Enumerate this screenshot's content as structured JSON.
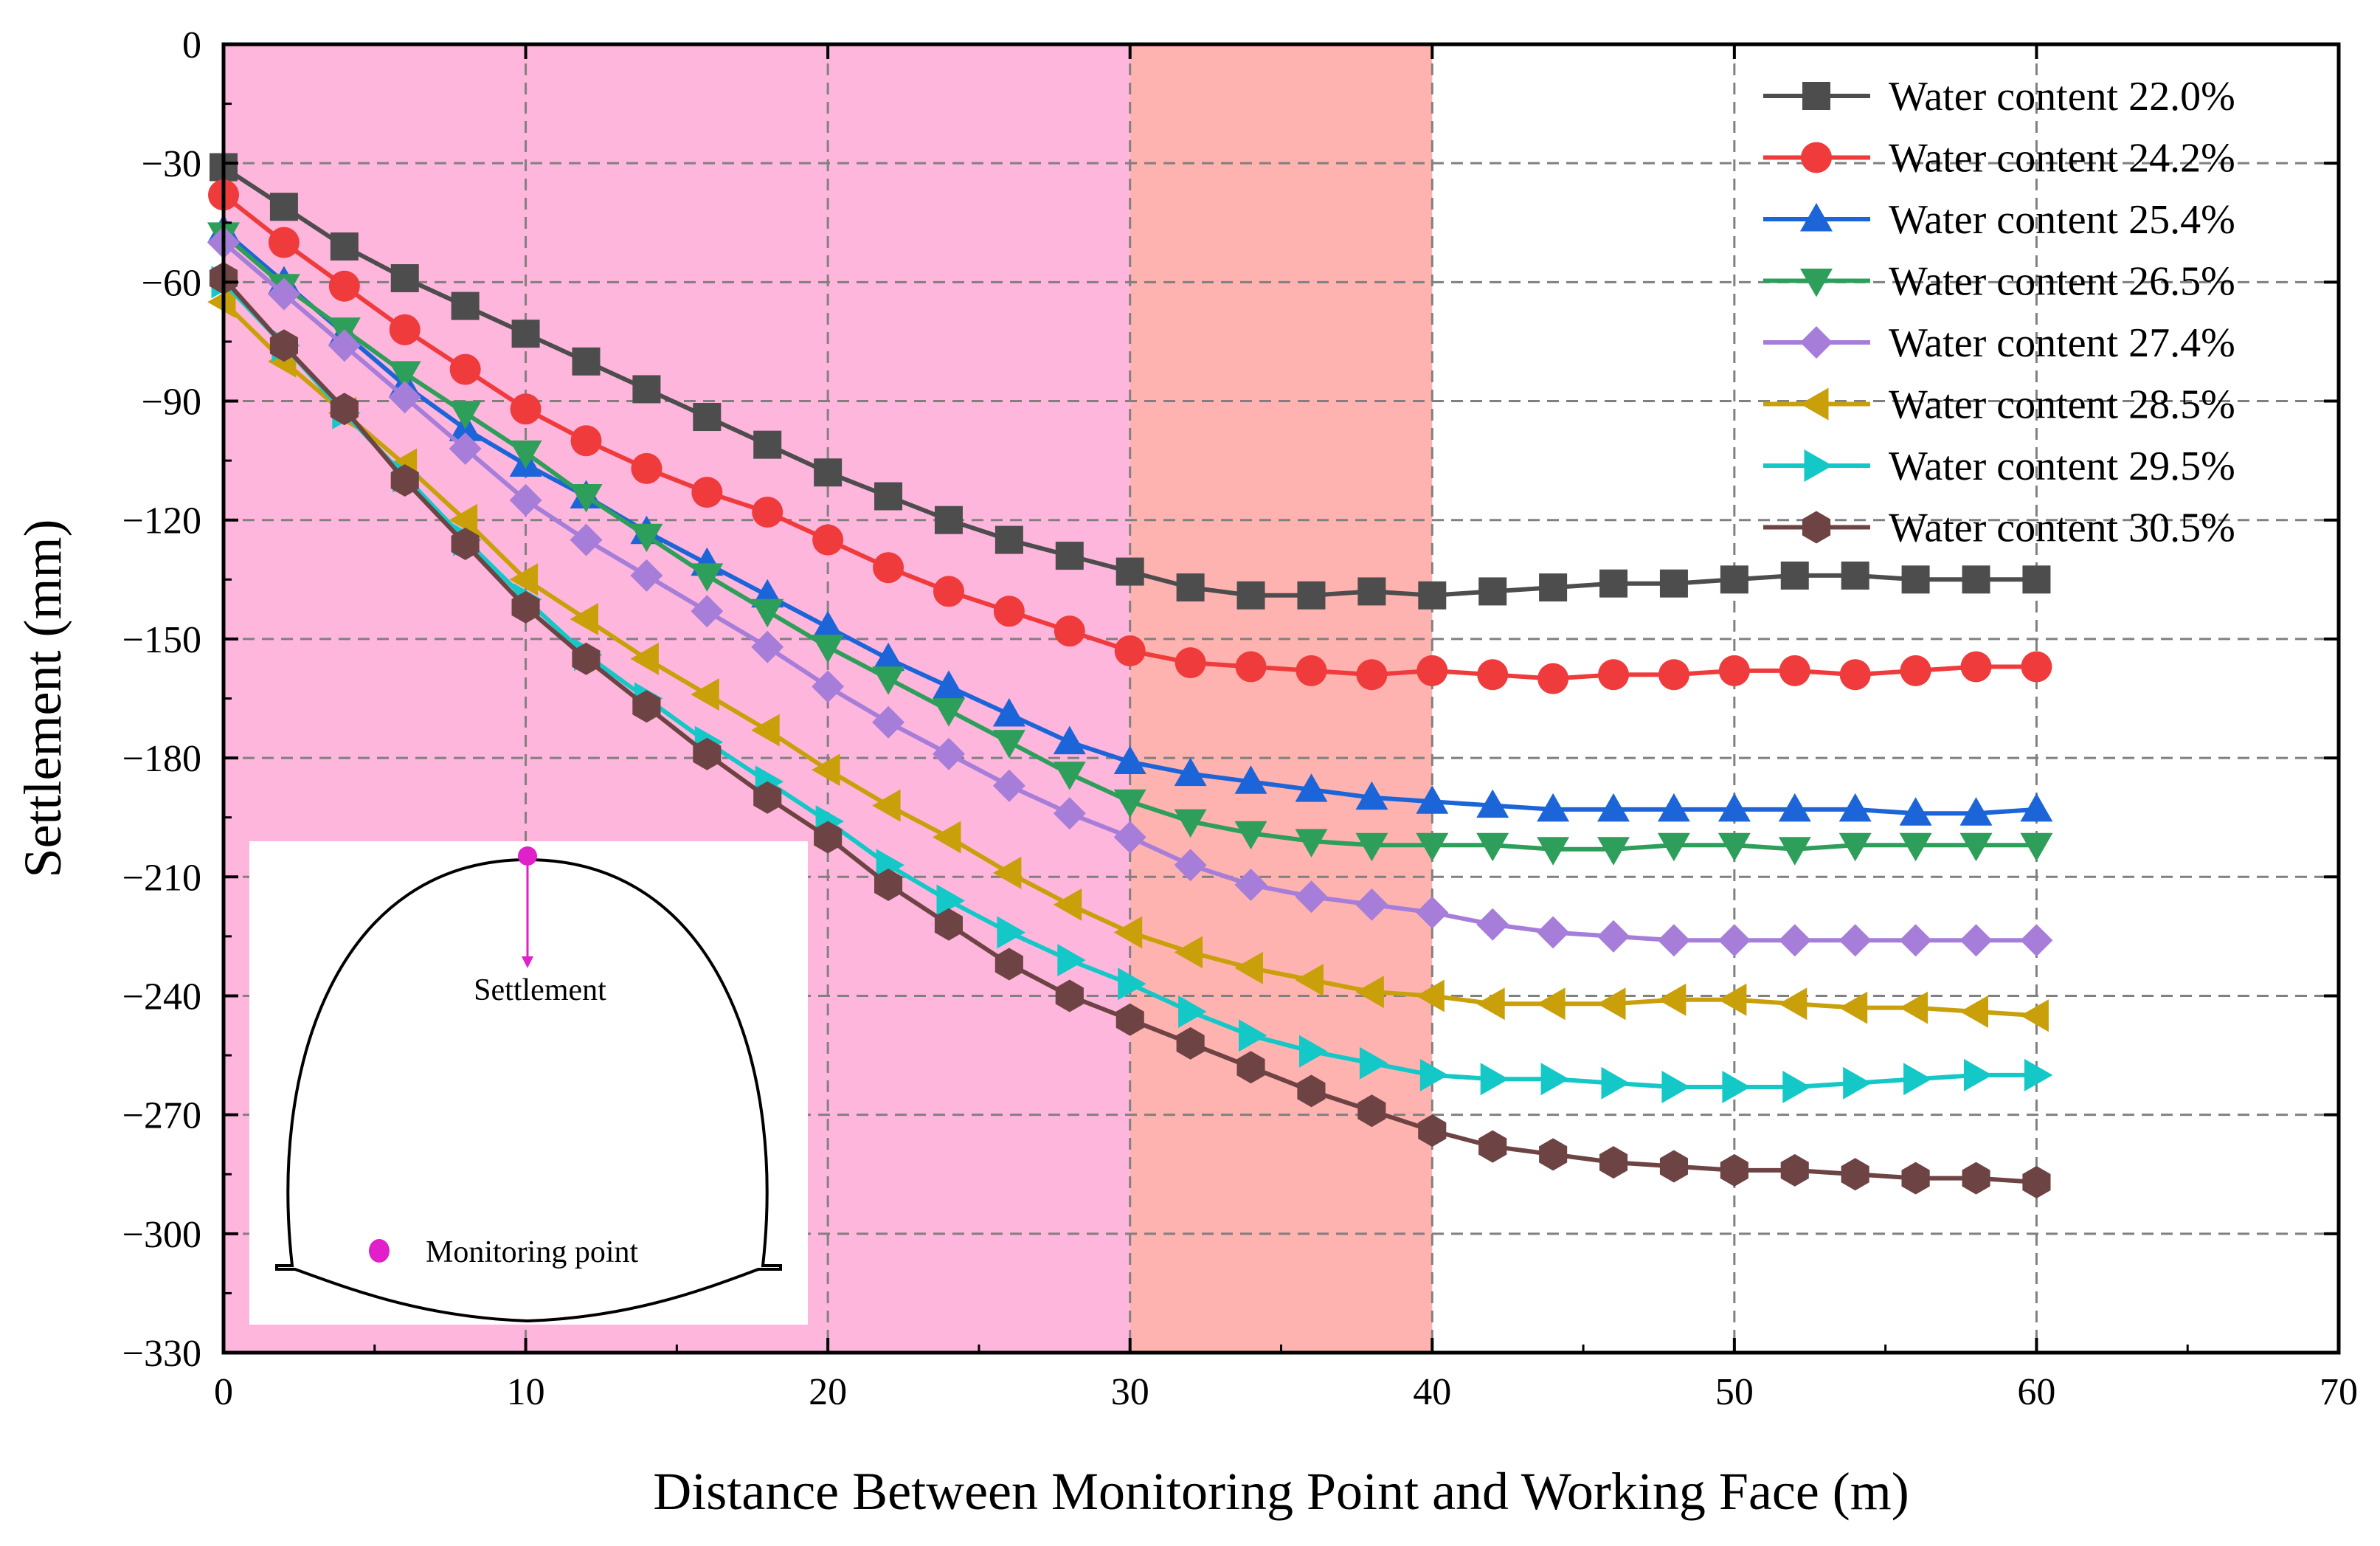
{
  "chart_data": {
    "type": "line",
    "title": "",
    "xlabel": "Distance Between Monitoring Point and Working Face (m)",
    "ylabel": "Settlement (mm)",
    "xlim": [
      0,
      70
    ],
    "ylim": [
      -330,
      0
    ],
    "xticks": [
      0,
      10,
      20,
      30,
      40,
      50,
      60,
      70
    ],
    "yticks": [
      0,
      -30,
      -60,
      -90,
      -120,
      -150,
      -180,
      -210,
      -240,
      -270,
      -300,
      -330
    ],
    "grid": "dashed, both axes",
    "legend_position": "top-right",
    "regions": [
      {
        "from": 0,
        "to": 30,
        "color": "#ffb6dc"
      },
      {
        "from": 30,
        "to": 40,
        "color": "#ffb3b0"
      }
    ],
    "x": [
      0,
      2,
      4,
      6,
      8,
      10,
      12,
      14,
      16,
      18,
      20,
      22,
      24,
      26,
      28,
      30,
      32,
      34,
      36,
      38,
      40,
      42,
      44,
      46,
      48,
      50,
      52,
      54,
      56,
      58,
      60
    ],
    "series": [
      {
        "name": "Water content 22.0%",
        "color": "#4d4d4d",
        "marker": "square",
        "values": [
          -31,
          -41,
          -51,
          -59,
          -66,
          -73,
          -80,
          -87,
          -94,
          -101,
          -108,
          -114,
          -120,
          -125,
          -129,
          -133,
          -137,
          -139,
          -139,
          -138,
          -139,
          -138,
          -137,
          -136,
          -136,
          -135,
          -134,
          -134,
          -135,
          -135,
          -135
        ]
      },
      {
        "name": "Water content 24.2%",
        "color": "#ef3b3b",
        "marker": "circle",
        "values": [
          -38,
          -50,
          -61,
          -72,
          -82,
          -92,
          -100,
          -107,
          -113,
          -118,
          -125,
          -132,
          -138,
          -143,
          -148,
          -153,
          -156,
          -157,
          -158,
          -159,
          -158,
          -159,
          -160,
          -159,
          -159,
          -158,
          -158,
          -159,
          -158,
          -157,
          -157
        ]
      },
      {
        "name": "Water content 25.4%",
        "color": "#1c65d8",
        "marker": "triangle-up",
        "values": [
          -47,
          -60,
          -73,
          -86,
          -97,
          -106,
          -114,
          -123,
          -131,
          -139,
          -147,
          -155,
          -162,
          -169,
          -176,
          -181,
          -184,
          -186,
          -188,
          -190,
          -191,
          -192,
          -193,
          -193,
          -193,
          -193,
          -193,
          -193,
          -194,
          -194,
          -193
        ]
      },
      {
        "name": "Water content 26.5%",
        "color": "#2e9e5b",
        "marker": "triangle-down",
        "values": [
          -48,
          -61,
          -72,
          -83,
          -93,
          -103,
          -114,
          -124,
          -134,
          -143,
          -152,
          -160,
          -168,
          -176,
          -184,
          -191,
          -196,
          -199,
          -201,
          -202,
          -202,
          -202,
          -203,
          -203,
          -202,
          -202,
          -203,
          -202,
          -202,
          -202,
          -202
        ]
      },
      {
        "name": "Water content 27.4%",
        "color": "#a67ed9",
        "marker": "diamond",
        "values": [
          -50,
          -63,
          -76,
          -89,
          -102,
          -115,
          -125,
          -134,
          -143,
          -152,
          -162,
          -171,
          -179,
          -187,
          -194,
          -200,
          -207,
          -212,
          -215,
          -217,
          -219,
          -222,
          -224,
          -225,
          -226,
          -226,
          -226,
          -226,
          -226,
          -226,
          -226
        ]
      },
      {
        "name": "Water content 28.5%",
        "color": "#c9a00a",
        "marker": "triangle-left",
        "values": [
          -65,
          -80,
          -93,
          -106,
          -120,
          -135,
          -145,
          -155,
          -164,
          -173,
          -183,
          -192,
          -200,
          -209,
          -217,
          -224,
          -229,
          -233,
          -236,
          -239,
          -240,
          -242,
          -242,
          -242,
          -241,
          -241,
          -242,
          -243,
          -243,
          -244,
          -245
        ]
      },
      {
        "name": "Water content 29.5%",
        "color": "#14c8c8",
        "marker": "triangle-right",
        "values": [
          -60,
          -76,
          -93,
          -109,
          -125,
          -140,
          -154,
          -165,
          -176,
          -186,
          -196,
          -207,
          -216,
          -224,
          -231,
          -237,
          -244,
          -250,
          -254,
          -257,
          -260,
          -261,
          -261,
          -262,
          -263,
          -263,
          -263,
          -262,
          -261,
          -260,
          -260
        ]
      },
      {
        "name": "Water content 30.5%",
        "color": "#6e4343",
        "marker": "hexagon",
        "values": [
          -59,
          -76,
          -92,
          -110,
          -126,
          -142,
          -155,
          -167,
          -179,
          -190,
          -200,
          -212,
          -222,
          -232,
          -240,
          -246,
          -252,
          -258,
          -264,
          -269,
          -274,
          -278,
          -280,
          -282,
          -283,
          -284,
          -284,
          -285,
          -286,
          -286,
          -287
        ]
      }
    ]
  },
  "inset": {
    "settlement_label": "Settlement",
    "monitoring_label": "Monitoring point",
    "accent_color": "#e020c8"
  }
}
